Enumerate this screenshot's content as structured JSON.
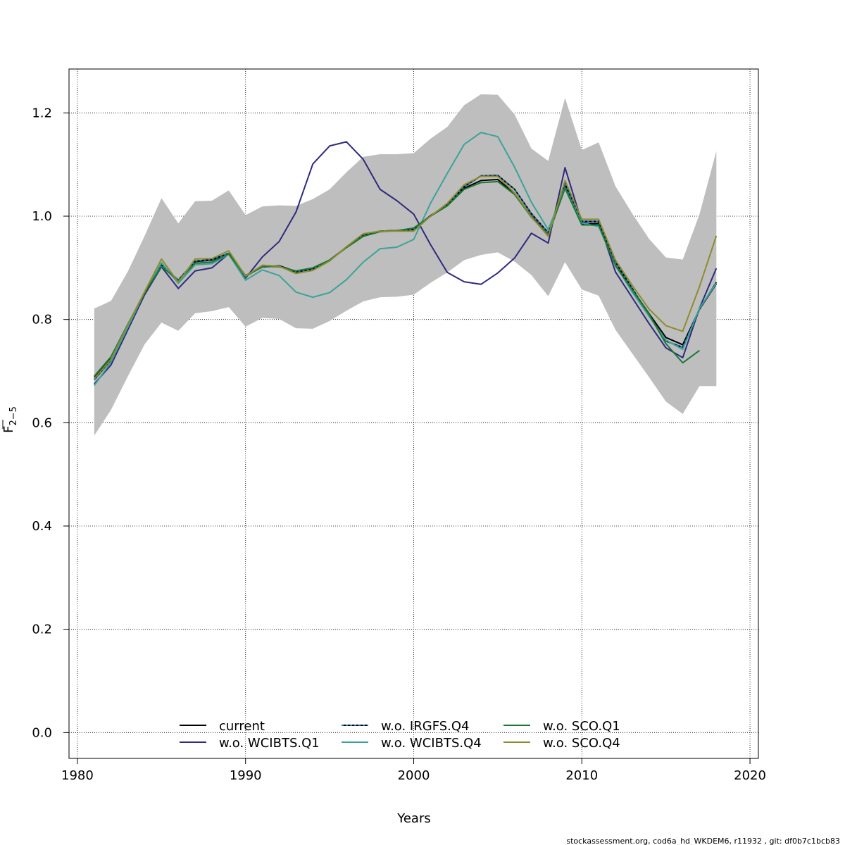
{
  "chart_data": {
    "type": "line",
    "xlabel": "Years",
    "ylabel_main": "F",
    "ylabel_sub": "2−5",
    "xlim": [
      1979.5,
      2020.5
    ],
    "ylim": [
      -0.05,
      1.285
    ],
    "xticks": [
      1980,
      1990,
      2000,
      2010,
      2020
    ],
    "xtick_labels": [
      "1980",
      "1990",
      "2000",
      "2010",
      "2020"
    ],
    "yticks": [
      0.0,
      0.2,
      0.4,
      0.6,
      0.8,
      1.0,
      1.2
    ],
    "ytick_labels": [
      "0.0",
      "0.2",
      "0.4",
      "0.6",
      "0.8",
      "1.0",
      "1.2"
    ],
    "grid": true,
    "legend_position": "bottom",
    "footer": "stockassessment.org, cod6a_hd_WKDEM6, r11932 , git: df0b7c1bcb83",
    "confidence_band": {
      "color": "#bebebe",
      "x": [
        1981,
        1982,
        1983,
        1984,
        1985,
        1986,
        1987,
        1988,
        1989,
        1990,
        1991,
        1992,
        1993,
        1994,
        1995,
        1996,
        1997,
        1998,
        1999,
        2000,
        2001,
        2002,
        2003,
        2004,
        2005,
        2006,
        2007,
        2008,
        2009,
        2010,
        2011,
        2012,
        2013,
        2014,
        2015,
        2016,
        2017,
        2018
      ],
      "upper": [
        0.821,
        0.836,
        0.893,
        0.962,
        1.035,
        0.986,
        1.029,
        1.03,
        1.05,
        1.002,
        1.019,
        1.021,
        1.02,
        1.033,
        1.052,
        1.085,
        1.115,
        1.12,
        1.12,
        1.122,
        1.15,
        1.173,
        1.215,
        1.236,
        1.235,
        1.197,
        1.131,
        1.107,
        1.229,
        1.128,
        1.143,
        1.058,
        1.005,
        0.956,
        0.92,
        0.916,
        1.004,
        1.126
      ],
      "lower": [
        0.575,
        0.625,
        0.69,
        0.752,
        0.794,
        0.778,
        0.812,
        0.816,
        0.824,
        0.786,
        0.803,
        0.801,
        0.783,
        0.782,
        0.797,
        0.817,
        0.835,
        0.843,
        0.844,
        0.848,
        0.871,
        0.891,
        0.915,
        0.925,
        0.93,
        0.912,
        0.886,
        0.845,
        0.911,
        0.858,
        0.846,
        0.78,
        0.734,
        0.688,
        0.641,
        0.617,
        0.671,
        0.671
      ]
    },
    "series": [
      {
        "name": "current",
        "color": "#000000",
        "dash": "solid",
        "x": [
          1981,
          1982,
          1983,
          1984,
          1985,
          1986,
          1987,
          1988,
          1989,
          1990,
          1991,
          1992,
          1993,
          1994,
          1995,
          1996,
          1997,
          1998,
          1999,
          2000,
          2001,
          2002,
          2003,
          2004,
          2005,
          2006,
          2007,
          2008,
          2009,
          2010,
          2011,
          2012,
          2013,
          2014,
          2015,
          2016,
          2017,
          2018
        ],
        "values": [
          0.688,
          0.725,
          0.789,
          0.851,
          0.904,
          0.876,
          0.912,
          0.915,
          0.927,
          0.884,
          0.902,
          0.904,
          0.893,
          0.898,
          0.915,
          0.94,
          0.963,
          0.971,
          0.972,
          0.975,
          1.001,
          1.021,
          1.054,
          1.069,
          1.071,
          1.044,
          1.0,
          0.963,
          1.058,
          0.984,
          0.986,
          0.906,
          0.858,
          0.811,
          0.765,
          0.751,
          0.82,
          0.869
        ]
      },
      {
        "name": "w.o. WCIBTS.Q1",
        "color": "#2e2a7e",
        "dash": "solid",
        "x": [
          1981,
          1982,
          1983,
          1984,
          1985,
          1986,
          1987,
          1988,
          1989,
          1990,
          1991,
          1992,
          1993,
          1994,
          1995,
          1996,
          1997,
          1998,
          1999,
          2000,
          2001,
          2002,
          2003,
          2004,
          2005,
          2006,
          2007,
          2008,
          2009,
          2010,
          2011,
          2012,
          2013,
          2014,
          2015,
          2016,
          2017,
          2018
        ],
        "values": [
          0.675,
          0.712,
          0.78,
          0.848,
          0.902,
          0.86,
          0.894,
          0.9,
          0.927,
          0.88,
          0.921,
          0.951,
          1.008,
          1.101,
          1.136,
          1.144,
          1.11,
          1.052,
          1.03,
          1.004,
          0.945,
          0.891,
          0.873,
          0.868,
          0.89,
          0.919,
          0.967,
          0.948,
          1.094,
          0.988,
          0.99,
          0.892,
          0.842,
          0.792,
          0.745,
          0.726,
          0.822,
          0.899
        ]
      },
      {
        "name": "w.o. IRGFS.Q4",
        "color": "#1f77b4",
        "dash": "dotted",
        "x": [
          1981,
          1982,
          1983,
          1984,
          1985,
          1986,
          1987,
          1988,
          1989,
          1990,
          1991,
          1992,
          1993,
          1994,
          1995,
          1996,
          1997,
          1998,
          1999,
          2000,
          2001,
          2002,
          2003,
          2004,
          2005,
          2006,
          2007,
          2008,
          2009,
          2010,
          2011,
          2012,
          2013,
          2014,
          2015,
          2016,
          2017,
          2018
        ],
        "values": [
          0.683,
          0.722,
          0.788,
          0.851,
          0.905,
          0.876,
          0.913,
          0.916,
          0.928,
          0.885,
          0.902,
          0.903,
          0.892,
          0.897,
          0.914,
          0.94,
          0.964,
          0.971,
          0.972,
          0.974,
          1.0,
          1.022,
          1.057,
          1.078,
          1.079,
          1.052,
          1.005,
          0.968,
          1.063,
          0.99,
          0.99,
          0.911,
          0.86,
          0.808,
          0.758,
          0.746,
          0.82,
          0.872
        ]
      },
      {
        "name": "w.o. WCIBTS.Q4",
        "color": "#3aa39a",
        "dash": "solid",
        "x": [
          1981,
          1982,
          1983,
          1984,
          1985,
          1986,
          1987,
          1988,
          1989,
          1990,
          1991,
          1992,
          1993,
          1994,
          1995,
          1996,
          1997,
          1998,
          1999,
          2000,
          2001,
          2002,
          2003,
          2004,
          2005,
          2006,
          2007,
          2008,
          2009,
          2010,
          2011,
          2012,
          2013,
          2014,
          2015,
          2016,
          2017,
          2018
        ],
        "values": [
          0.672,
          0.718,
          0.785,
          0.852,
          0.91,
          0.87,
          0.906,
          0.908,
          0.926,
          0.876,
          0.896,
          0.885,
          0.853,
          0.843,
          0.852,
          0.877,
          0.911,
          0.937,
          0.94,
          0.955,
          1.025,
          1.083,
          1.139,
          1.162,
          1.154,
          1.095,
          1.027,
          0.974,
          1.055,
          0.987,
          0.98,
          0.906,
          0.853,
          0.806,
          0.76,
          0.742,
          0.822,
          0.87
        ]
      },
      {
        "name": "w.o. SCO.Q1",
        "color": "#1b7837",
        "dash": "solid",
        "x": [
          1981,
          1982,
          1983,
          1984,
          1985,
          1986,
          1987,
          1988,
          1989,
          1990,
          1991,
          1992,
          1993,
          1994,
          1995,
          1996,
          1997,
          1998,
          1999,
          2000,
          2001,
          2002,
          2003,
          2004,
          2005,
          2006,
          2007,
          2008,
          2009,
          2010,
          2011,
          2012,
          2013,
          2014,
          2015,
          2016,
          2017
        ],
        "values": [
          0.69,
          0.728,
          0.791,
          0.852,
          0.903,
          0.875,
          0.909,
          0.911,
          0.927,
          0.883,
          0.903,
          0.902,
          0.894,
          0.9,
          0.915,
          0.939,
          0.961,
          0.97,
          0.972,
          0.977,
          1.0,
          1.02,
          1.052,
          1.065,
          1.067,
          1.042,
          0.998,
          0.963,
          1.054,
          0.983,
          0.983,
          0.904,
          0.857,
          0.81,
          0.753,
          0.716,
          0.74
        ]
      },
      {
        "name": "w.o. SCO.Q4",
        "color": "#8e8c2f",
        "dash": "solid",
        "x": [
          1981,
          1982,
          1983,
          1984,
          1985,
          1986,
          1987,
          1988,
          1989,
          1990,
          1991,
          1992,
          1993,
          1994,
          1995,
          1996,
          1997,
          1998,
          1999,
          2000,
          2001,
          2002,
          2003,
          2004,
          2005,
          2006,
          2007,
          2008,
          2009,
          2010,
          2011,
          2012,
          2013,
          2014,
          2015,
          2016,
          2017,
          2018
        ],
        "values": [
          0.685,
          0.723,
          0.79,
          0.854,
          0.917,
          0.872,
          0.917,
          0.918,
          0.933,
          0.884,
          0.905,
          0.903,
          0.889,
          0.895,
          0.913,
          0.941,
          0.966,
          0.971,
          0.971,
          0.971,
          1.0,
          1.025,
          1.061,
          1.077,
          1.077,
          1.045,
          0.999,
          0.961,
          1.069,
          0.994,
          0.994,
          0.915,
          0.866,
          0.82,
          0.788,
          0.777,
          0.864,
          0.962
        ]
      }
    ],
    "legend": [
      {
        "label": "current",
        "color": "#000000",
        "dash": "solid"
      },
      {
        "label": "w.o. WCIBTS.Q1",
        "color": "#2e2a7e",
        "dash": "solid"
      },
      {
        "label": "w.o. IRGFS.Q4",
        "color": "#1f77b4",
        "dash": "dotted"
      },
      {
        "label": "w.o. WCIBTS.Q4",
        "color": "#3aa39a",
        "dash": "solid"
      },
      {
        "label": "w.o. SCO.Q1",
        "color": "#1b7837",
        "dash": "solid"
      },
      {
        "label": "w.o. SCO.Q4",
        "color": "#8e8c2f",
        "dash": "solid"
      }
    ]
  }
}
